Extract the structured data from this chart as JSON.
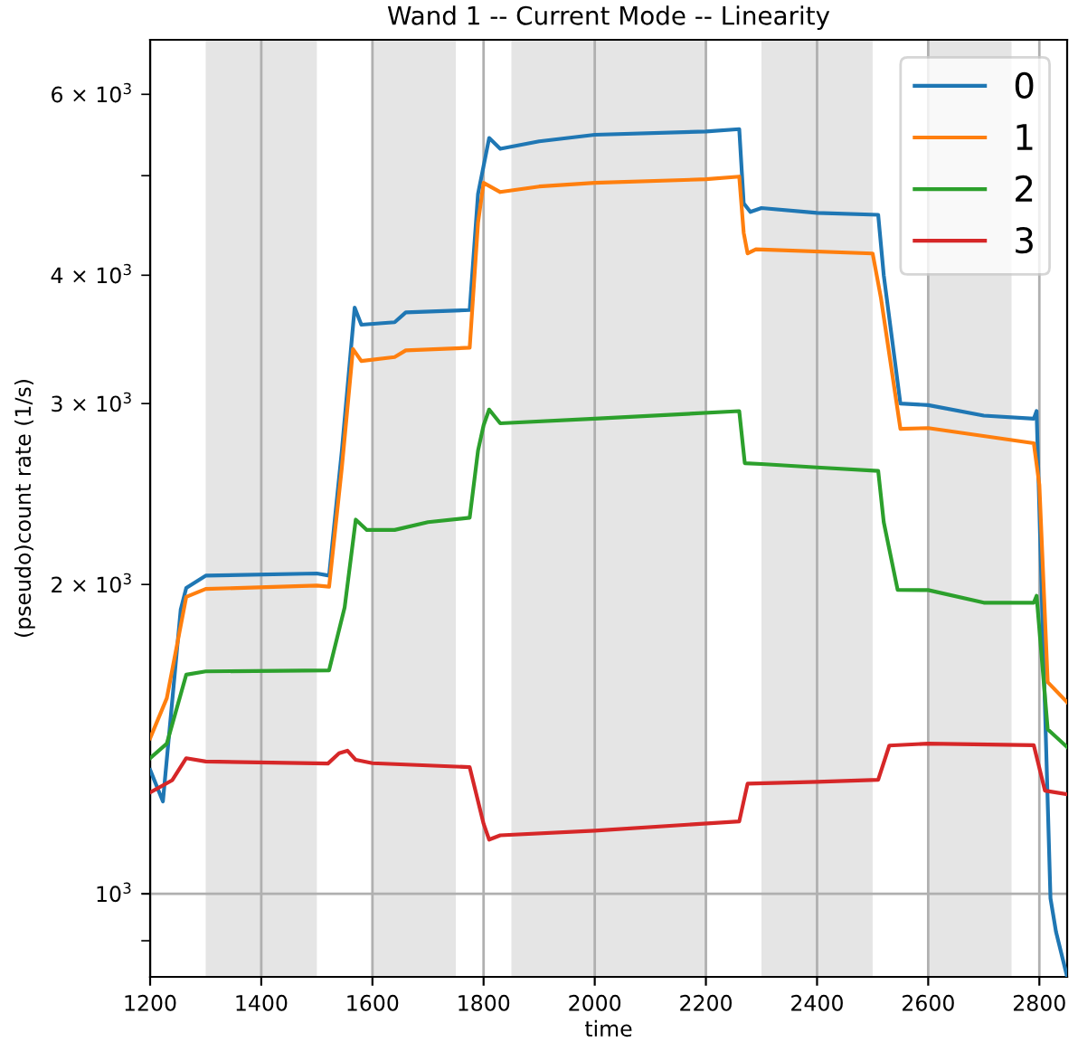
{
  "chart_data": {
    "type": "line",
    "title": "Wand 1 -- Current Mode -- Linearity",
    "xlabel": "time",
    "ylabel": "(pseudo)count rate (1/s)",
    "log": "y",
    "grid": true,
    "legend": "top right",
    "line_style": "solid",
    "marker": "none",
    "xlim": [
      1200,
      2850
    ],
    "xticks": [
      1200,
      1400,
      1600,
      1800,
      2000,
      2200,
      2400,
      2600,
      2800
    ],
    "ylim": [
      830,
      6780
    ],
    "yticks": [
      {
        "value": 900,
        "label": null
      },
      {
        "value": 1000,
        "label": "10$^{3}$"
      },
      {
        "value": 2000,
        "label": "2 × 10$^{3}$"
      },
      {
        "value": 3000,
        "label": "3 × 10$^{3}$"
      },
      {
        "value": 4000,
        "label": "4 × 10$^{3}$"
      },
      {
        "value": 5000,
        "label": null
      },
      {
        "value": 6000,
        "label": "6 × 10$^{3}$"
      }
    ],
    "bands": [
      {
        "axis": "x",
        "from": 1300,
        "to": 1500,
        "color": "#e5e5e5"
      },
      {
        "axis": "x",
        "from": 1600,
        "to": 1750,
        "color": "#e5e5e5"
      },
      {
        "axis": "x",
        "from": 1850,
        "to": 2200,
        "color": "#e5e5e5"
      },
      {
        "axis": "x",
        "from": 2300,
        "to": 2500,
        "color": "#e5e5e5"
      },
      {
        "axis": "x",
        "from": 2600,
        "to": 2750,
        "color": "#e5e5e5"
      }
    ],
    "series": [
      {
        "name": "0",
        "color": "#1f77b4",
        "x": [
          1200,
          1223,
          1255,
          1265,
          1300,
          1500,
          1522,
          1545,
          1568,
          1580,
          1640,
          1660,
          1775,
          1790,
          1810,
          1830,
          1900,
          2000,
          2200,
          2260,
          2268,
          2280,
          2300,
          2400,
          2510,
          2520,
          2550,
          2600,
          2700,
          2790,
          2795,
          2810,
          2820,
          2830,
          2850
        ],
        "values": [
          1320,
          1230,
          1890,
          1985,
          2040,
          2050,
          2040,
          2700,
          3720,
          3580,
          3600,
          3680,
          3700,
          4800,
          5440,
          5310,
          5400,
          5480,
          5520,
          5550,
          4700,
          4610,
          4650,
          4600,
          4580,
          4000,
          3000,
          2990,
          2920,
          2900,
          2950,
          1525,
          990,
          918,
          830
        ]
      },
      {
        "name": "1",
        "color": "#ff7f0e",
        "x": [
          1200,
          1230,
          1265,
          1300,
          1500,
          1522,
          1545,
          1565,
          1580,
          1640,
          1660,
          1775,
          1790,
          1800,
          1830,
          1900,
          2000,
          2200,
          2260,
          2268,
          2275,
          2290,
          2500,
          2515,
          2550,
          2600,
          2790,
          2800,
          2815,
          2850
        ],
        "values": [
          1417,
          1550,
          1945,
          1980,
          1995,
          1990,
          2600,
          3390,
          3300,
          3330,
          3380,
          3400,
          4500,
          4920,
          4820,
          4880,
          4920,
          4960,
          4990,
          4400,
          4200,
          4240,
          4200,
          3800,
          2835,
          2840,
          2745,
          2500,
          1607,
          1536
        ]
      },
      {
        "name": "2",
        "color": "#2ca02c",
        "x": [
          1200,
          1230,
          1265,
          1300,
          1522,
          1550,
          1570,
          1590,
          1640,
          1700,
          1775,
          1790,
          1800,
          1810,
          1830,
          2000,
          2260,
          2270,
          2300,
          2400,
          2510,
          2520,
          2545,
          2600,
          2700,
          2790,
          2795,
          2815,
          2850
        ],
        "values": [
          1355,
          1400,
          1634,
          1646,
          1650,
          1900,
          2313,
          2260,
          2260,
          2300,
          2323,
          2700,
          2857,
          2960,
          2870,
          2900,
          2950,
          2625,
          2620,
          2600,
          2580,
          2300,
          1976,
          1975,
          1920,
          1920,
          1950,
          1446,
          1389
        ]
      },
      {
        "name": "3",
        "color": "#d62728",
        "x": [
          1200,
          1240,
          1265,
          1300,
          1520,
          1540,
          1555,
          1570,
          1600,
          1775,
          1800,
          1810,
          1830,
          2000,
          2260,
          2275,
          2400,
          2510,
          2530,
          2600,
          2790,
          2810,
          2850
        ],
        "values": [
          1255,
          1290,
          1355,
          1345,
          1339,
          1370,
          1378,
          1350,
          1340,
          1328,
          1170,
          1129,
          1140,
          1152,
          1176,
          1280,
          1285,
          1291,
          1394,
          1400,
          1395,
          1260,
          1250
        ]
      }
    ]
  }
}
